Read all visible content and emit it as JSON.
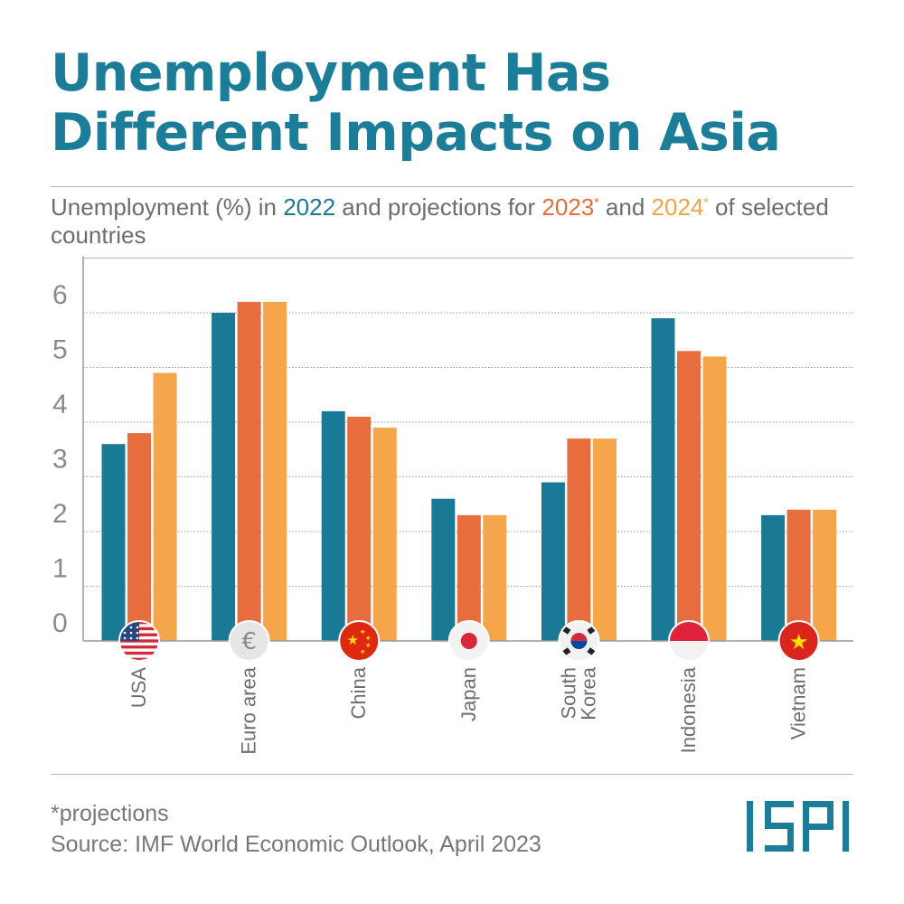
{
  "title_line1": "Unemployment Has",
  "title_line2": "Different Impacts on Asia",
  "subtitle": {
    "part1": "Unemployment (%) in ",
    "y2022": "2022",
    "part2": " and projections for ",
    "y2023": "2023",
    "star1": "*",
    "part3": " and ",
    "y2024": "2024",
    "star2": "*",
    "part4": " of selected countries"
  },
  "colors": {
    "title": "#1b7d97",
    "series_2022": "#1a7a95",
    "series_2023": "#e86d3e",
    "series_2024": "#f5a54a",
    "grid": "#9a9a9a",
    "text": "#6d6d6d"
  },
  "chart_data": {
    "type": "bar",
    "categories": [
      "USA",
      "Euro area",
      "China",
      "Japan",
      "South Korea",
      "Indonesia",
      "Vietnam"
    ],
    "category_label_lines": [
      [
        "USA"
      ],
      [
        "Euro area"
      ],
      [
        "China"
      ],
      [
        "Japan"
      ],
      [
        "South",
        "Korea"
      ],
      [
        "Indonesia"
      ],
      [
        "Vietnam"
      ]
    ],
    "flags": [
      "usa-flag-icon",
      "euro-icon",
      "china-flag-icon",
      "japan-flag-icon",
      "south-korea-flag-icon",
      "indonesia-flag-icon",
      "vietnam-flag-icon"
    ],
    "series": [
      {
        "name": "2022",
        "values": [
          3.6,
          6.0,
          4.2,
          2.6,
          2.9,
          5.9,
          2.3
        ]
      },
      {
        "name": "2023",
        "values": [
          3.8,
          6.2,
          4.1,
          2.3,
          3.7,
          5.3,
          2.4
        ]
      },
      {
        "name": "2024",
        "values": [
          4.9,
          6.2,
          3.9,
          2.3,
          3.7,
          5.2,
          2.4
        ]
      }
    ],
    "yticks": [
      "0",
      "1",
      "2",
      "3",
      "4",
      "5",
      "6"
    ],
    "ylim": [
      0,
      7
    ],
    "grid": true
  },
  "footnote": "*projections",
  "source": "Source: IMF World Economic Outlook, April 2023",
  "logo_text": "ISPI"
}
